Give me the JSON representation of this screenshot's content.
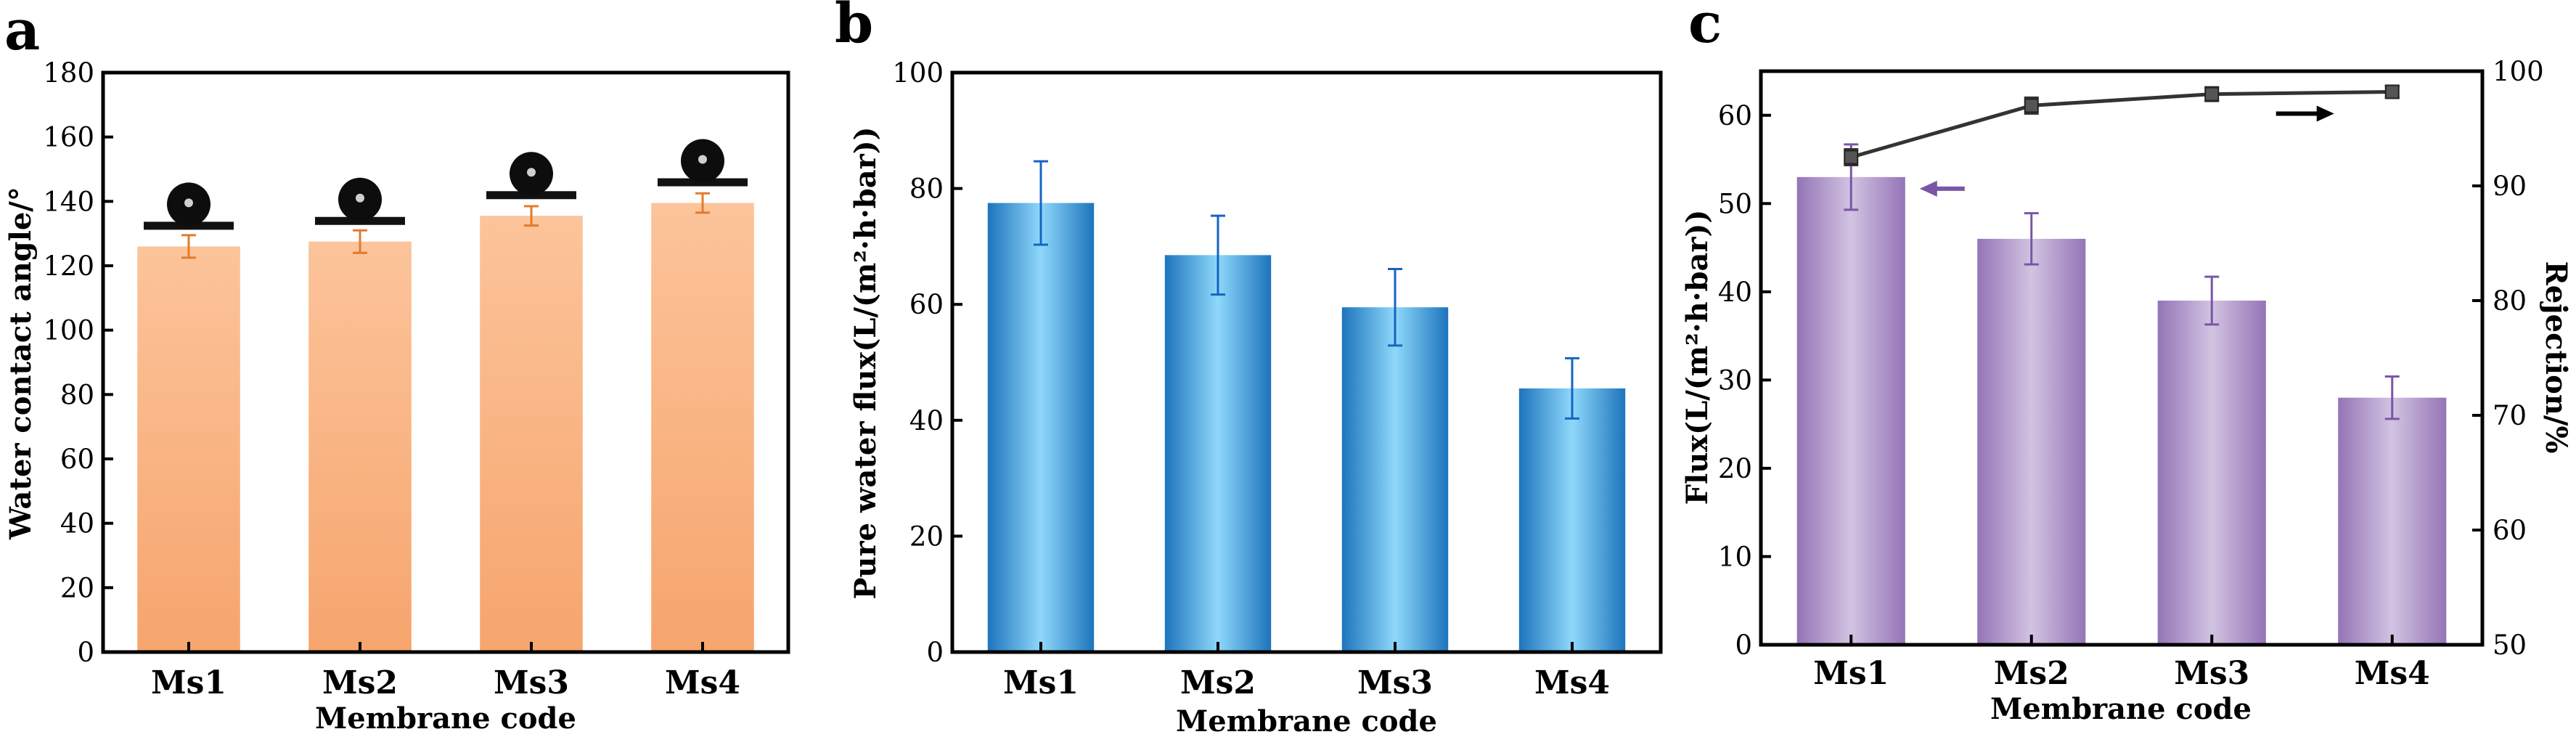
{
  "colors": {
    "orange_light": "#fcc49a",
    "orange_dark": "#f6a56d",
    "orange_error": "#e07b2e",
    "blue_light": "#8fd8fb",
    "blue_dark": "#1d74bd",
    "blue_error": "#1565c0",
    "purple_light": "#d2c3e2",
    "purple_dark": "#9474b6",
    "purple_error": "#7a56a6",
    "rejection_line": "#333333",
    "arrow_purple": "#7a56a6",
    "arrow_black": "#000000"
  },
  "chart_data": [
    {
      "type": "bar",
      "panel_label": "a",
      "categories": [
        "Ms1",
        "Ms2",
        "Ms3",
        "Ms4"
      ],
      "values": [
        126,
        127.5,
        135.5,
        139.5
      ],
      "errors": [
        3.5,
        3.5,
        3,
        3
      ],
      "ylabel": "Water contact angle/°",
      "xlabel": "Membrane code",
      "ylim": [
        0,
        180
      ],
      "yticks": [
        "0",
        "20",
        "40",
        "60",
        "80",
        "100",
        "120",
        "140",
        "160",
        "180"
      ],
      "droplet_insets": true
    },
    {
      "type": "bar",
      "panel_label": "b",
      "categories": [
        "Ms1",
        "Ms2",
        "Ms3",
        "Ms4"
      ],
      "values": [
        77.5,
        68.5,
        59.5,
        45.5
      ],
      "errors": [
        7.2,
        6.8,
        6.6,
        5.2
      ],
      "ylabel": "Pure water flux(L/(m²·h·bar))",
      "xlabel": "Membrane code",
      "ylim": [
        0,
        100
      ],
      "yticks": [
        "0",
        "20",
        "40",
        "60",
        "80",
        "100"
      ]
    },
    {
      "type": "bar",
      "panel_label": "c",
      "categories": [
        "Ms1",
        "Ms2",
        "Ms3",
        "Ms4"
      ],
      "values": [
        53,
        46,
        39,
        28
      ],
      "errors": [
        3.7,
        2.9,
        2.7,
        2.4
      ],
      "ylabel": "Flux(L/(m²·h·bar))",
      "xlabel": "Membrane code",
      "ylim": [
        0,
        65
      ],
      "yticks": [
        "0",
        "10",
        "20",
        "30",
        "40",
        "50",
        "60"
      ],
      "secondary": {
        "type": "line",
        "values": [
          92.5,
          97,
          98,
          98.2
        ],
        "errors": [
          0.7,
          0.7,
          0.6,
          0.5
        ],
        "ylabel": "Rejection/%",
        "ylim": [
          50,
          100
        ],
        "yticks": [
          "50",
          "60",
          "70",
          "80",
          "90",
          "100"
        ]
      }
    }
  ]
}
